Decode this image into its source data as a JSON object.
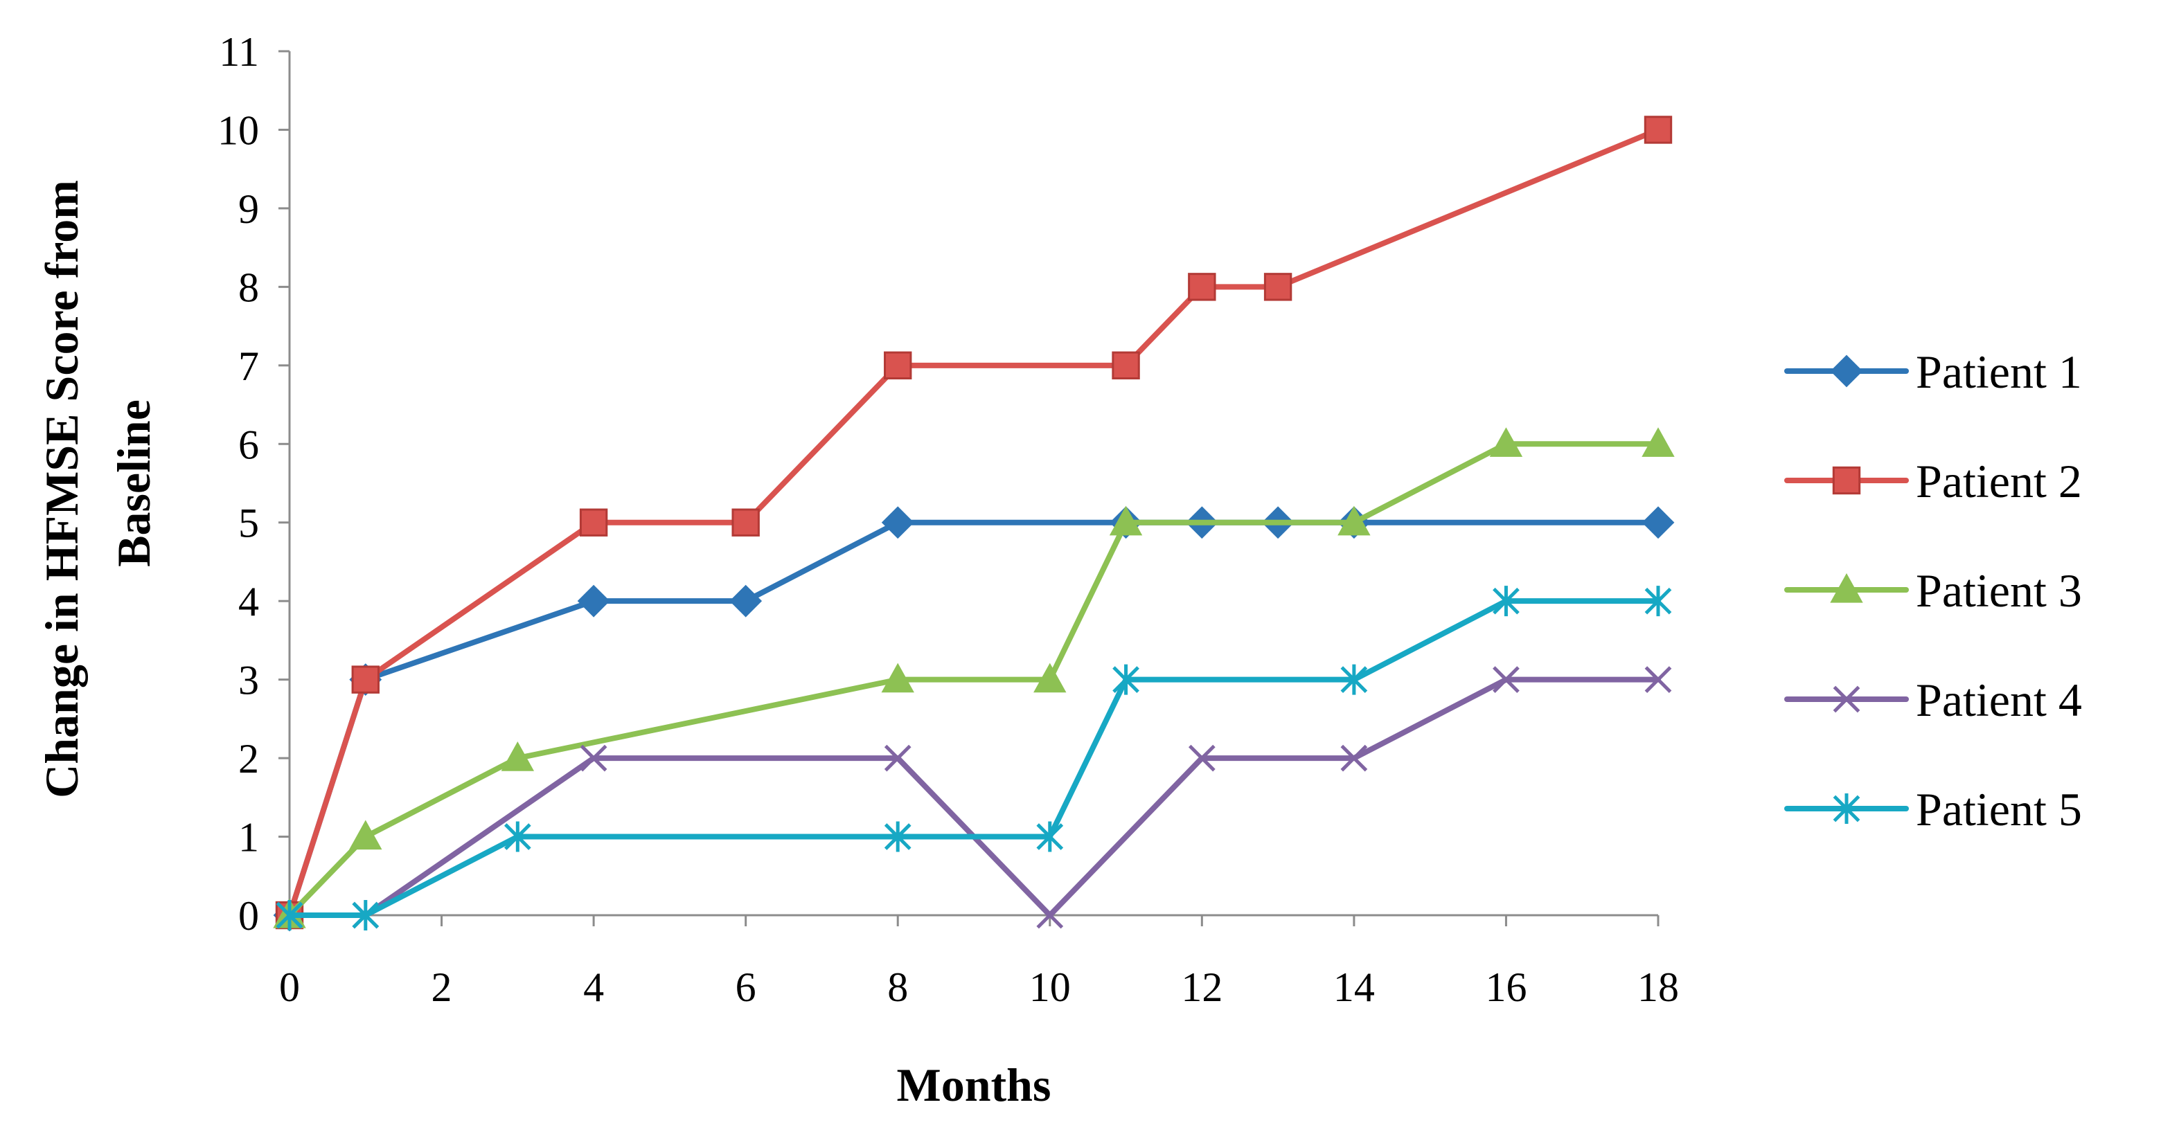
{
  "chart_data": {
    "type": "line",
    "title": "",
    "xlabel": "Months",
    "ylabel_lines": [
      "Change in HFMSE Score from",
      "Baseline"
    ],
    "xlim": [
      0,
      18
    ],
    "ylim": [
      0,
      11
    ],
    "xticks": [
      0,
      2,
      4,
      6,
      8,
      10,
      12,
      14,
      16,
      18
    ],
    "yticks": [
      0,
      1,
      2,
      3,
      4,
      5,
      6,
      7,
      8,
      9,
      10,
      11
    ],
    "grid": false,
    "legend_position": "right",
    "series": [
      {
        "name": "Patient 1",
        "color": "#2E75B6",
        "marker": "diamond",
        "points": [
          [
            0,
            0
          ],
          [
            1,
            3
          ],
          [
            4,
            4
          ],
          [
            6,
            4
          ],
          [
            8,
            5
          ],
          [
            11,
            5
          ],
          [
            12,
            5
          ],
          [
            13,
            5
          ],
          [
            14,
            5
          ],
          [
            18,
            5
          ]
        ]
      },
      {
        "name": "Patient 2",
        "color": "#D9534F",
        "marker": "square",
        "points": [
          [
            0,
            0
          ],
          [
            1,
            3
          ],
          [
            4,
            5
          ],
          [
            6,
            5
          ],
          [
            8,
            7
          ],
          [
            11,
            7
          ],
          [
            12,
            8
          ],
          [
            13,
            8
          ],
          [
            18,
            10
          ]
        ]
      },
      {
        "name": "Patient 3",
        "color": "#8DC153",
        "marker": "triangle",
        "points": [
          [
            0,
            0
          ],
          [
            1,
            1
          ],
          [
            3,
            2
          ],
          [
            8,
            3
          ],
          [
            10,
            3
          ],
          [
            11,
            5
          ],
          [
            14,
            5
          ],
          [
            16,
            6
          ],
          [
            18,
            6
          ]
        ]
      },
      {
        "name": "Patient 4",
        "color": "#8064A2",
        "marker": "x",
        "points": [
          [
            0,
            0
          ],
          [
            1,
            0
          ],
          [
            4,
            2
          ],
          [
            8,
            2
          ],
          [
            10,
            0
          ],
          [
            12,
            2
          ],
          [
            14,
            2
          ],
          [
            16,
            3
          ],
          [
            18,
            3
          ]
        ]
      },
      {
        "name": "Patient 5",
        "color": "#17A8C4",
        "marker": "asterisk",
        "points": [
          [
            0,
            0
          ],
          [
            1,
            0
          ],
          [
            3,
            1
          ],
          [
            8,
            1
          ],
          [
            10,
            1
          ],
          [
            11,
            3
          ],
          [
            14,
            3
          ],
          [
            16,
            4
          ],
          [
            18,
            4
          ]
        ]
      }
    ]
  }
}
